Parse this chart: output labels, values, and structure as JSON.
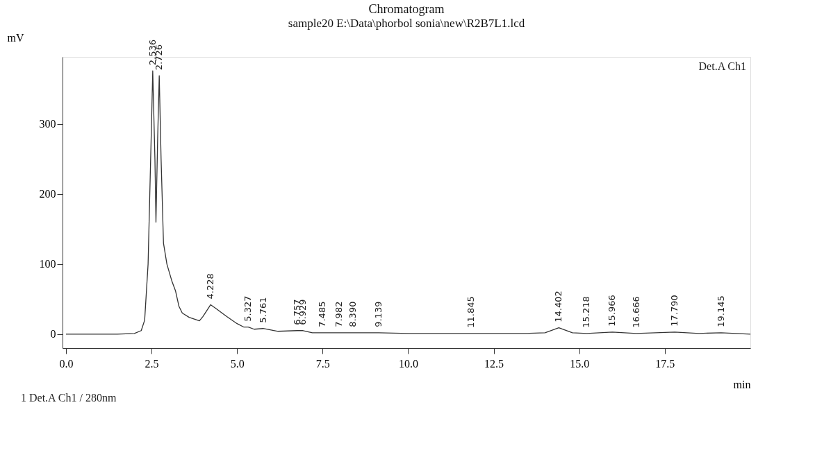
{
  "chart_data": {
    "type": "line",
    "title": "Chromatogram",
    "subtitle": "sample20 E:\\Data\\phorbol sonia\\new\\R2B7L1.lcd",
    "xlabel": "min",
    "ylabel": "mV",
    "legend": "top right",
    "marker": "none",
    "line_style": "solid",
    "grid": false,
    "xlim": [
      -0.1,
      20.0
    ],
    "ylim": [
      -20,
      396
    ],
    "xticks": [
      {
        "value": 0,
        "label": "0.0"
      },
      {
        "value": 2.5,
        "label": "2.5"
      },
      {
        "value": 5,
        "label": "5.0"
      },
      {
        "value": 7.5,
        "label": "7.5"
      },
      {
        "value": 10,
        "label": "10.0"
      },
      {
        "value": 12.5,
        "label": "12.5"
      },
      {
        "value": 15,
        "label": "15.0"
      },
      {
        "value": 17.5,
        "label": "17.5"
      }
    ],
    "yticks": [
      0,
      100,
      200,
      300
    ],
    "x": [
      0,
      1.5,
      2.0,
      2.2,
      2.3,
      2.4,
      2.5,
      2.536,
      2.6,
      2.63,
      2.68,
      2.726,
      2.78,
      2.85,
      2.95,
      3.1,
      3.2,
      3.3,
      3.4,
      3.6,
      3.9,
      4.0,
      4.228,
      4.4,
      4.7,
      5.0,
      5.2,
      5.327,
      5.5,
      5.761,
      6.2,
      6.757,
      6.929,
      7.2,
      7.485,
      7.982,
      8.39,
      9.139,
      10,
      11.845,
      13.5,
      14.0,
      14.402,
      14.8,
      15.218,
      15.966,
      16.666,
      17.79,
      18.5,
      19.145,
      20
    ],
    "series": [
      {
        "name": "Det.A Ch1",
        "color": "#333333",
        "values": [
          0,
          0,
          1,
          5,
          20,
          100,
          300,
          376,
          250,
          160,
          280,
          369,
          250,
          130,
          100,
          75,
          62,
          40,
          30,
          24,
          19,
          25,
          42,
          36,
          25,
          15,
          10,
          10,
          7,
          8,
          4,
          5,
          5,
          2,
          2,
          2,
          2,
          2,
          1,
          1,
          1,
          2,
          9,
          2,
          1,
          3,
          1,
          3,
          1,
          2,
          0
        ]
      }
    ],
    "annotations": [
      {
        "text": "2.536",
        "x": 2.536,
        "y": 376
      },
      {
        "text": "2.726",
        "x": 2.726,
        "y": 369
      },
      {
        "text": "4.228",
        "x": 4.228,
        "y": 42
      },
      {
        "text": "5.327",
        "x": 5.327,
        "y": 10
      },
      {
        "text": "5.761",
        "x": 5.761,
        "y": 8
      },
      {
        "text": "6.757",
        "x": 6.757,
        "y": 5
      },
      {
        "text": "6.929",
        "x": 6.929,
        "y": 5
      },
      {
        "text": "7.485",
        "x": 7.485,
        "y": 2
      },
      {
        "text": "7.982",
        "x": 7.982,
        "y": 2
      },
      {
        "text": "8.390",
        "x": 8.39,
        "y": 2
      },
      {
        "text": "9.139",
        "x": 9.139,
        "y": 2
      },
      {
        "text": "11.845",
        "x": 11.845,
        "y": 1
      },
      {
        "text": "14.402",
        "x": 14.402,
        "y": 9
      },
      {
        "text": "15.218",
        "x": 15.218,
        "y": 1
      },
      {
        "text": "15.966",
        "x": 15.966,
        "y": 3
      },
      {
        "text": "16.666",
        "x": 16.666,
        "y": 1
      },
      {
        "text": "17.790",
        "x": 17.79,
        "y": 3
      },
      {
        "text": "19.145",
        "x": 19.145,
        "y": 2
      },
      "1  Det.A Ch1 / 280nm"
    ]
  }
}
